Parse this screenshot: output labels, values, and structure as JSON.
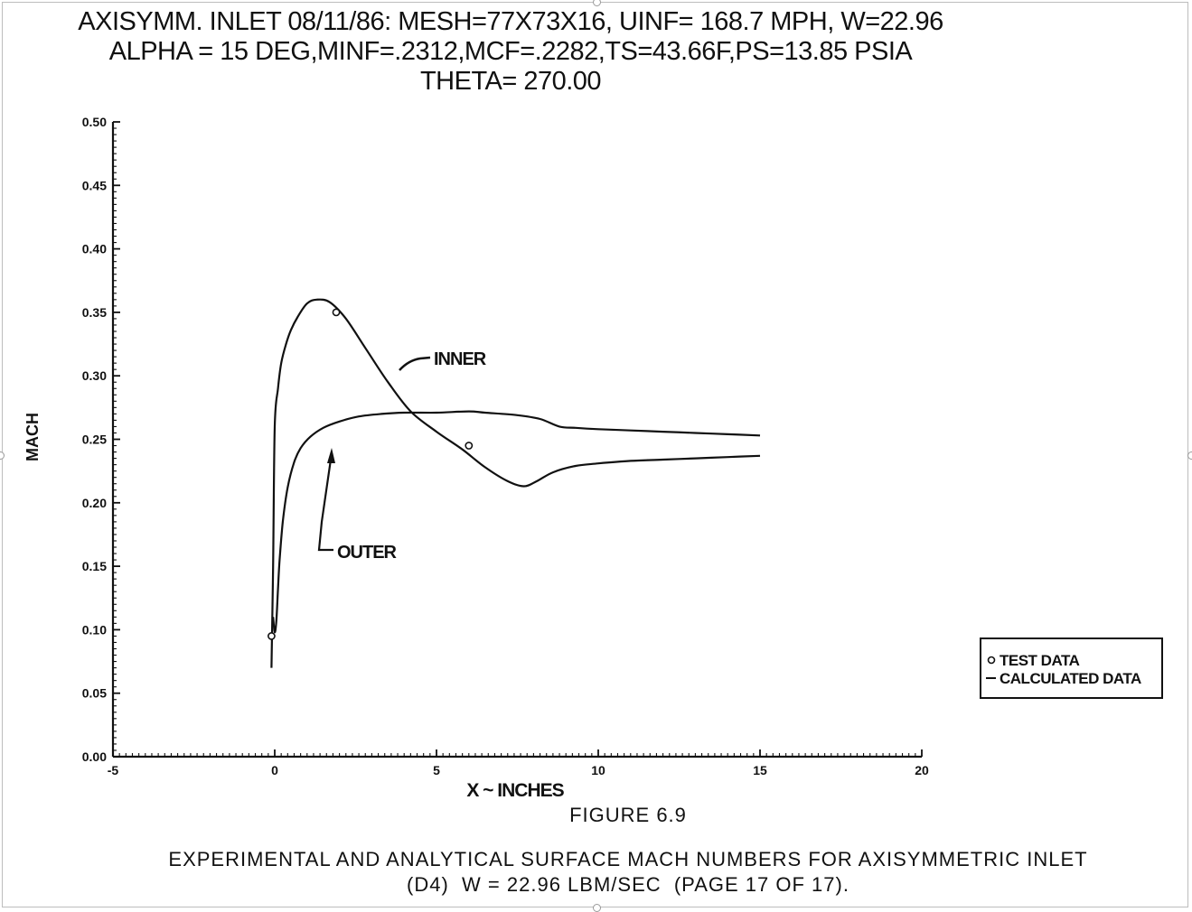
{
  "header": {
    "line1": "AXISYMM. INLET 08/11/86: MESH=77X73X16, UINF= 168.7 MPH, W=22.96",
    "line2": "ALPHA = 15 DEG,MINF=.2312,MCF=.2282,TS=43.66F,PS=13.85 PSIA",
    "line3": "THETA= 270.00"
  },
  "figure_number": "FIGURE 6.9",
  "caption": {
    "line1": "EXPERIMENTAL AND ANALYTICAL SURFACE MACH NUMBERS FOR AXISYMMETRIC INLET",
    "line2": "(D4)  W = 22.96 LBM/SEC  (PAGE 17 OF 17)."
  },
  "chart_data": {
    "type": "line",
    "xlabel": "X ~ INCHES",
    "ylabel": "MACH",
    "xlim": [
      -5,
      20
    ],
    "ylim": [
      0,
      0.5
    ],
    "xticks": [
      "-5",
      "0",
      "5",
      "10",
      "15",
      "20"
    ],
    "yticks": [
      "0.00",
      "0.05",
      "0.10",
      "0.15",
      "0.20",
      "0.25",
      "0.30",
      "0.35",
      "0.40",
      "0.45",
      "0.50"
    ],
    "grid": false,
    "legend_position": "lower-right outside",
    "legend": [
      "TEST DATA",
      "CALCULATED DATA"
    ],
    "annotations": [
      "INNER",
      "OUTER"
    ],
    "series": [
      {
        "name": "INNER",
        "x": [
          -0.1,
          -0.05,
          0.0,
          0.1,
          0.2,
          0.35,
          0.5,
          0.7,
          1.0,
          1.3,
          1.7,
          2.2,
          2.8,
          3.5,
          4.2,
          5.0,
          5.8,
          6.5,
          7.2,
          7.7,
          8.1,
          8.6,
          9.3,
          10.0,
          11.0,
          12.0,
          13.0,
          14.0,
          15.0
        ],
        "y": [
          0.07,
          0.15,
          0.26,
          0.29,
          0.31,
          0.325,
          0.336,
          0.346,
          0.357,
          0.36,
          0.358,
          0.345,
          0.322,
          0.295,
          0.272,
          0.256,
          0.242,
          0.228,
          0.217,
          0.213,
          0.217,
          0.224,
          0.229,
          0.231,
          0.233,
          0.234,
          0.235,
          0.236,
          0.237
        ]
      },
      {
        "name": "OUTER",
        "x": [
          -0.05,
          0.0,
          0.05,
          0.1,
          0.15,
          0.25,
          0.4,
          0.6,
          0.8,
          1.1,
          1.5,
          2.0,
          2.6,
          3.3,
          4.0,
          5.0,
          6.0,
          6.5,
          7.5,
          8.2,
          8.8,
          9.3,
          10.0,
          11.0,
          12.0,
          13.0,
          14.0,
          15.0
        ],
        "y": [
          0.11,
          0.098,
          0.107,
          0.132,
          0.155,
          0.185,
          0.212,
          0.232,
          0.243,
          0.252,
          0.259,
          0.264,
          0.268,
          0.27,
          0.271,
          0.271,
          0.272,
          0.271,
          0.269,
          0.266,
          0.26,
          0.259,
          0.258,
          0.257,
          0.256,
          0.255,
          0.254,
          0.253
        ]
      }
    ],
    "test_data": [
      {
        "surface": "INNER",
        "x": 1.9,
        "y": 0.35
      },
      {
        "surface": "INNER",
        "x": 6.0,
        "y": 0.245
      },
      {
        "surface": "OUTER",
        "x": -0.1,
        "y": 0.095
      }
    ]
  }
}
